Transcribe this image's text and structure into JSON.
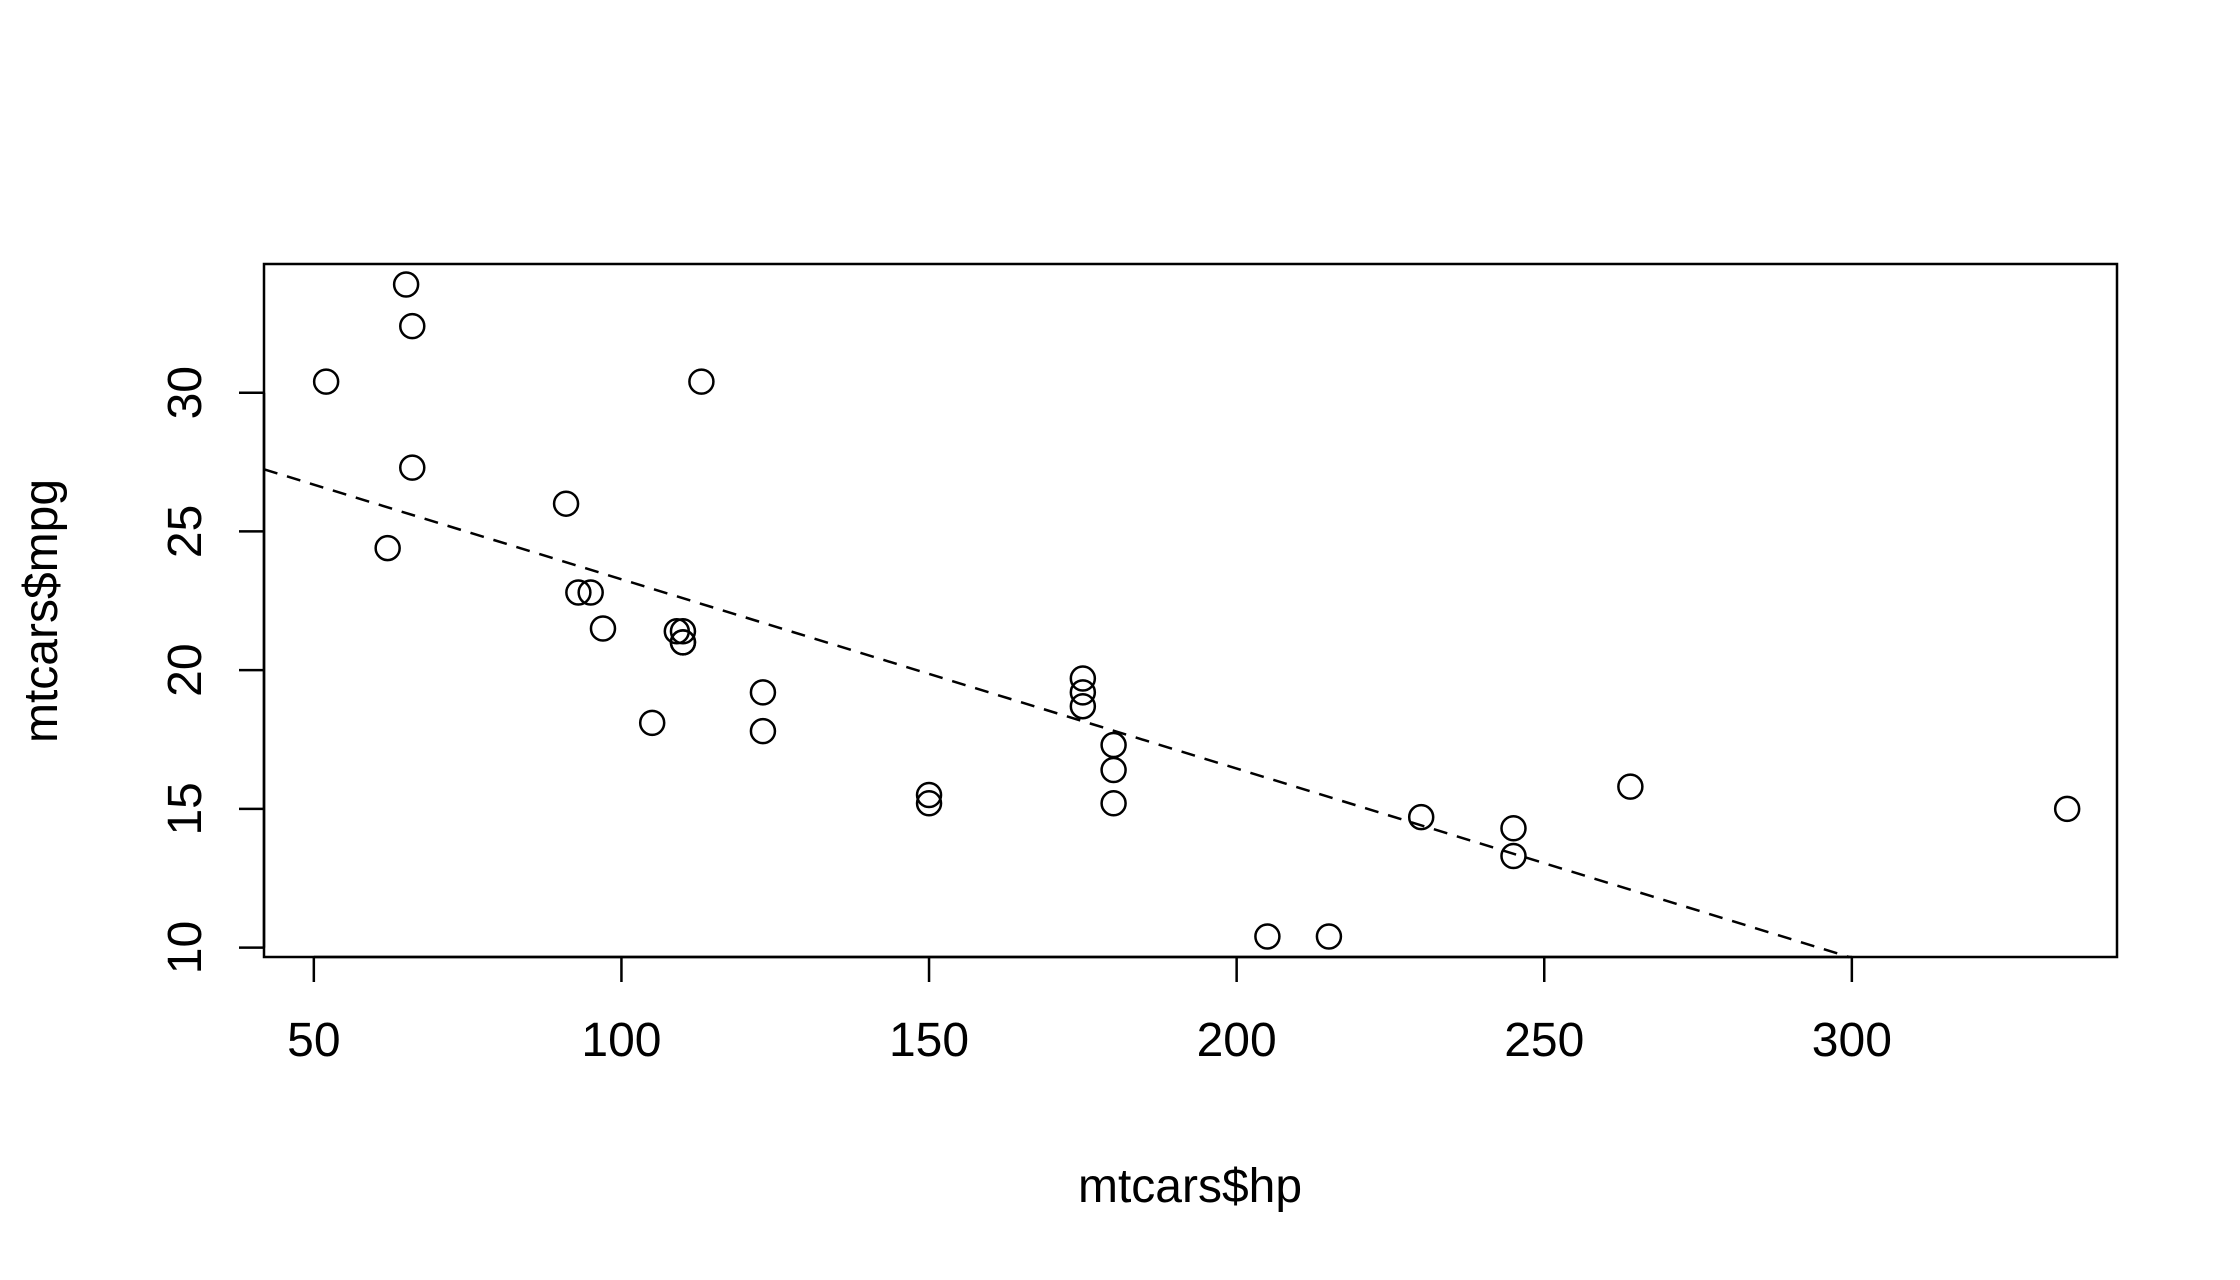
{
  "chart_data": {
    "type": "scatter",
    "title": "",
    "xlabel": "mtcars$hp",
    "ylabel": "mtcars$mpg",
    "xlim": [
      41.9,
      343.1
    ],
    "ylim": [
      9.66,
      34.64
    ],
    "x_ticks": [
      50,
      100,
      150,
      200,
      250,
      300
    ],
    "x_tick_labels": [
      "50",
      "100",
      "150",
      "200",
      "250",
      "300"
    ],
    "y_ticks": [
      10,
      15,
      20,
      25,
      30
    ],
    "y_tick_labels": [
      "10",
      "15",
      "20",
      "25",
      "30"
    ],
    "grid": false,
    "series": [
      {
        "marker": "open-circle",
        "x": [
          110,
          110,
          93,
          110,
          175,
          105,
          245,
          62,
          95,
          123,
          123,
          180,
          180,
          180,
          205,
          215,
          230,
          66,
          52,
          65,
          97,
          150,
          150,
          245,
          175,
          66,
          91,
          113,
          264,
          175,
          335,
          109
        ],
        "y": [
          21.0,
          21.0,
          22.8,
          21.4,
          18.7,
          18.1,
          14.3,
          24.4,
          22.8,
          19.2,
          17.8,
          16.4,
          17.3,
          15.2,
          10.4,
          10.4,
          14.7,
          32.4,
          30.4,
          33.9,
          21.5,
          15.5,
          15.2,
          13.3,
          19.2,
          27.3,
          26.0,
          30.4,
          15.8,
          19.7,
          15.0,
          21.4
        ]
      }
    ],
    "fit_line": {
      "style": "dashed",
      "intercept": 30.09886,
      "slope": -0.06823
    }
  }
}
